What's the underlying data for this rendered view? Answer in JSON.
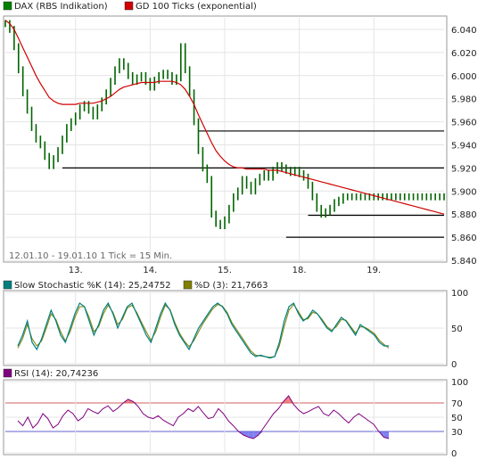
{
  "chart_data": [
    {
      "type": "line",
      "legend": [
        {
          "name": "DAX (RBS Indikation)",
          "color": "#008000"
        },
        {
          "name": "GD 100 Ticks (exponential)",
          "color": "#d00000"
        }
      ],
      "note": "12.01.10 - 19.01.10   1 Tick = 15 Min.",
      "x_ticks": [
        "13.",
        "14.",
        "15.",
        "18.",
        "19."
      ],
      "y_ticks": [
        "6.040",
        "6.020",
        "6.000",
        "5.980",
        "5.960",
        "5.940",
        "5.920",
        "5.900",
        "5.880",
        "5.860",
        "5.840"
      ],
      "ylim": [
        5840,
        6050
      ],
      "x_range": [
        0,
        100
      ],
      "candles_x": [
        0,
        1,
        2,
        3,
        4,
        5,
        6,
        7,
        8,
        9,
        10,
        11,
        12,
        13,
        14,
        15,
        16,
        17,
        18,
        19,
        20,
        21,
        22,
        23,
        24,
        25,
        26,
        27,
        28,
        29,
        30,
        31,
        32,
        33,
        34,
        35,
        36,
        37,
        38,
        39,
        40,
        41,
        42,
        43,
        44,
        45,
        46,
        47,
        48,
        49,
        50,
        51,
        52,
        53,
        54,
        55,
        56,
        57,
        58,
        59,
        60,
        61,
        62,
        63,
        64,
        65,
        66,
        67,
        68,
        69,
        70,
        71,
        72,
        73,
        74,
        75,
        76,
        77,
        78,
        79,
        80,
        81,
        82,
        83,
        84,
        85,
        86,
        87,
        88,
        89,
        90,
        91,
        92,
        93,
        94,
        95,
        96,
        97,
        98,
        99,
        100
      ],
      "price": [
        6045,
        6040,
        6025,
        6005,
        5985,
        5970,
        5955,
        5945,
        5940,
        5930,
        5922,
        5928,
        5935,
        5945,
        5955,
        5960,
        5965,
        5972,
        5975,
        5970,
        5965,
        5972,
        5978,
        5985,
        5995,
        6005,
        6012,
        6008,
        6000,
        5995,
        5998,
        6000,
        5995,
        5990,
        5996,
        6000,
        6002,
        6000,
        5995,
        5998,
        6025,
        6005,
        5985,
        5960,
        5935,
        5920,
        5910,
        5880,
        5872,
        5870,
        5875,
        5885,
        5895,
        5900,
        5910,
        5905,
        5900,
        5908,
        5912,
        5915,
        5912,
        5918,
        5922,
        5920,
        5918,
        5916,
        5918,
        5915,
        5912,
        5905,
        5895,
        5885,
        5880,
        5882,
        5885,
        5890,
        5892,
        5895,
        5895,
        5895,
        5895,
        5895,
        5895,
        5895,
        5895,
        5895,
        5895,
        5895,
        5895,
        5895,
        5895,
        5895,
        5895,
        5895,
        5895,
        5895,
        5895,
        5895,
        5895,
        5895,
        5895
      ],
      "ema": [
        6048,
        6045,
        6040,
        6032,
        6024,
        6016,
        6008,
        6000,
        5993,
        5987,
        5981,
        5978,
        5976,
        5975,
        5975,
        5975,
        5975,
        5976,
        5976,
        5976,
        5976,
        5977,
        5978,
        5980,
        5982,
        5985,
        5988,
        5990,
        5991,
        5992,
        5993,
        5994,
        5994,
        5994,
        5994,
        5995,
        5995,
        5995,
        5995,
        5994,
        5992,
        5988,
        5982,
        5975,
        5966,
        5958,
        5950,
        5942,
        5935,
        5930,
        5926,
        5923,
        5921,
        5920,
        5920,
        5919,
        5919,
        5919,
        5919,
        5919,
        5918,
        5918,
        5918,
        5917,
        5916,
        5915,
        5914,
        5913,
        5912,
        5911,
        5910,
        5909,
        5908,
        5907,
        5906,
        5905,
        5904,
        5903,
        5902,
        5901,
        5900,
        5899,
        5898,
        5897,
        5896,
        5895,
        5894,
        5893,
        5892,
        5891,
        5890,
        5889,
        5888,
        5887,
        5886,
        5885,
        5884,
        5883,
        5882,
        5881,
        5880
      ],
      "support_lines": [
        {
          "from": 44,
          "to": 100,
          "y": 5952
        },
        {
          "from": 13,
          "to": 100,
          "y": 5920
        },
        {
          "from": 69,
          "to": 100,
          "y": 5879
        },
        {
          "from": 64,
          "to": 100,
          "y": 5860
        }
      ]
    },
    {
      "type": "line",
      "legend": [
        {
          "name": "Slow Stochastic %K (14): 25,24752",
          "color": "#008080"
        },
        {
          "name": "%D (3): 21,7663",
          "color": "#808000"
        }
      ],
      "y_ticks": [
        "100",
        "50",
        "0"
      ],
      "ylim": [
        0,
        100
      ],
      "series": [
        {
          "name": "%K",
          "values": [
            25,
            40,
            60,
            30,
            20,
            35,
            55,
            75,
            60,
            40,
            30,
            50,
            70,
            85,
            80,
            60,
            40,
            55,
            75,
            85,
            70,
            50,
            65,
            80,
            85,
            70,
            55,
            40,
            30,
            50,
            70,
            85,
            75,
            55,
            40,
            30,
            20,
            35,
            50,
            60,
            70,
            80,
            85,
            80,
            70,
            55,
            45,
            35,
            25,
            15,
            10,
            12,
            10,
            8,
            10,
            30,
            60,
            80,
            85,
            70,
            60,
            65,
            75,
            70,
            60,
            50,
            45,
            55,
            65,
            60,
            50,
            40,
            55,
            50,
            45,
            40,
            30,
            25,
            25
          ]
        },
        {
          "name": "%D",
          "values": [
            22,
            35,
            55,
            35,
            25,
            32,
            50,
            70,
            62,
            45,
            32,
            45,
            65,
            80,
            80,
            65,
            45,
            52,
            70,
            82,
            72,
            55,
            62,
            78,
            82,
            72,
            58,
            45,
            33,
            45,
            65,
            82,
            76,
            58,
            43,
            32,
            24,
            32,
            45,
            57,
            67,
            77,
            83,
            81,
            72,
            58,
            48,
            38,
            28,
            18,
            12,
            11,
            10,
            9,
            10,
            25,
            52,
            75,
            83,
            73,
            62,
            63,
            72,
            70,
            62,
            52,
            47,
            52,
            62,
            61,
            52,
            43,
            52,
            51,
            47,
            42,
            33,
            27,
            22
          ]
        }
      ]
    },
    {
      "type": "line",
      "legend": [
        {
          "name": "RSI (14): 20,74236",
          "color": "#800080"
        }
      ],
      "y_ticks": [
        "100",
        "70",
        "50",
        "30",
        "0"
      ],
      "ylim": [
        0,
        100
      ],
      "thresholds": [
        70,
        30
      ],
      "series": [
        {
          "name": "RSI",
          "values": [
            45,
            38,
            50,
            35,
            42,
            55,
            48,
            35,
            40,
            52,
            60,
            55,
            45,
            50,
            62,
            58,
            55,
            62,
            66,
            58,
            63,
            70,
            75,
            72,
            65,
            55,
            50,
            48,
            52,
            46,
            42,
            38,
            50,
            55,
            62,
            58,
            65,
            56,
            48,
            50,
            62,
            55,
            45,
            38,
            30,
            25,
            22,
            20,
            25,
            35,
            45,
            55,
            62,
            72,
            80,
            68,
            60,
            55,
            58,
            62,
            65,
            55,
            52,
            60,
            55,
            48,
            42,
            50,
            55,
            50,
            45,
            40,
            30,
            22,
            20
          ]
        }
      ]
    }
  ]
}
